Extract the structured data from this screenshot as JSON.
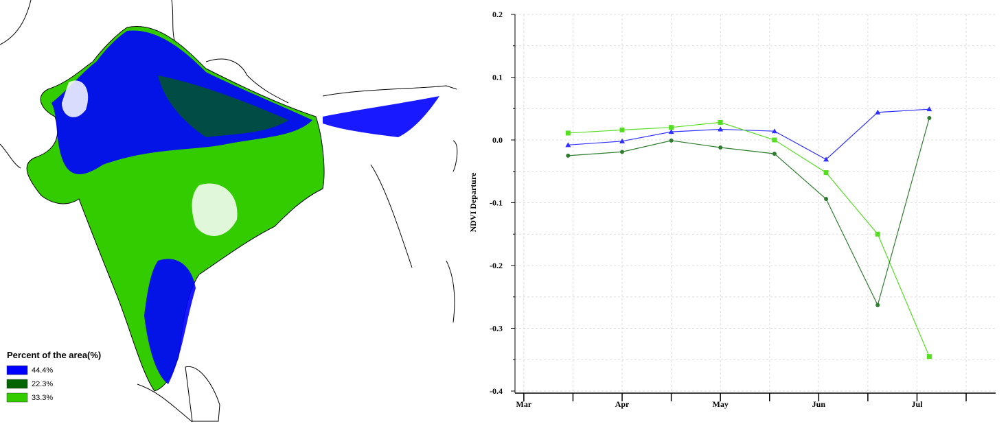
{
  "map": {
    "legend": {
      "title": "Percent of the area(%)",
      "items": [
        {
          "label": "44.4%",
          "color": "#0000ff"
        },
        {
          "label": "22.3%",
          "color": "#006400"
        },
        {
          "label": "33.3%",
          "color": "#33cc00"
        }
      ]
    }
  },
  "chart_data": {
    "type": "line",
    "y_label": "NDVI Departure",
    "x": [
      0.9,
      2,
      3,
      4,
      5.1,
      6.15,
      7.2,
      8.25
    ],
    "series": [
      {
        "color": "#2f2fff",
        "marker": "triangle",
        "values": [
          -0.008,
          -0.002,
          0.013,
          0.017,
          0.014,
          -0.031,
          0.044,
          0.049
        ]
      },
      {
        "color": "#55dd22",
        "marker": "square",
        "values": [
          0.011,
          0.016,
          0.02,
          0.028,
          0.0,
          -0.052,
          -0.15,
          -0.345
        ]
      },
      {
        "color": "#2e7d2e",
        "marker": "circle",
        "values": [
          -0.025,
          -0.019,
          -0.001,
          -0.012,
          -0.022,
          -0.094,
          -0.263,
          0.035
        ]
      }
    ],
    "xlim": [
      -0.18,
      9.6
    ],
    "xticks": [
      {
        "value": 0,
        "label": "Mar"
      },
      {
        "value": 2,
        "label": "Apr"
      },
      {
        "value": 4,
        "label": "May"
      },
      {
        "value": 6,
        "label": "Jun"
      },
      {
        "value": 8,
        "label": "Jul"
      }
    ],
    "xminorticks": [
      1,
      3,
      5,
      7,
      9
    ],
    "ylim": [
      -0.4,
      0.2
    ],
    "yticks": [
      0.2,
      0.1,
      {
        "value": 0,
        "label": "0.0"
      },
      -0.1,
      -0.2,
      -0.3,
      -0.4
    ],
    "yminorticks": [
      0.15,
      0.05,
      -0.05,
      -0.15,
      -0.25,
      -0.35
    ],
    "grid": true
  }
}
